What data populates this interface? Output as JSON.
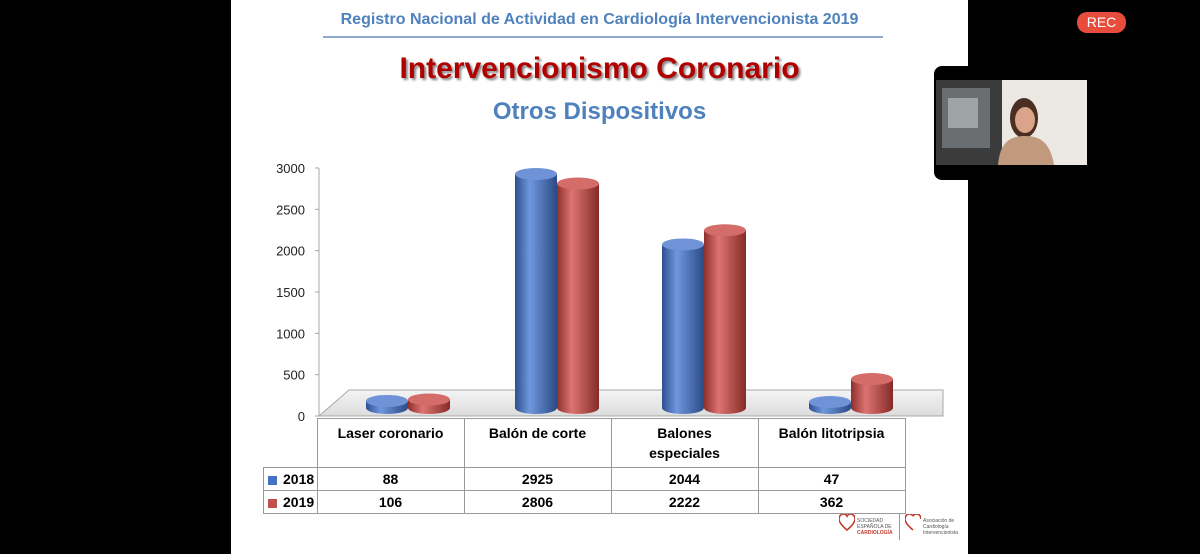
{
  "header": {
    "title": "Registro Nacional de Actividad en Cardiología Intervencionista 2019",
    "main_title": "Intervencionismo Coronario",
    "subtitle": "Otros Dispositivos"
  },
  "recording": {
    "label": "REC",
    "color": "#e74c3c"
  },
  "chart_data": {
    "type": "bar",
    "style": "3d-cylinder",
    "categories": [
      "Laser coronario",
      "Balón de corte",
      "Balones\nespeciales",
      "Balón litotripsia"
    ],
    "series": [
      {
        "name": "2018",
        "color": "#4472c4",
        "values": [
          88,
          2925,
          2044,
          47
        ]
      },
      {
        "name": "2019",
        "color": "#c0504d",
        "values": [
          106,
          2806,
          2222,
          362
        ]
      }
    ],
    "yticks": [
      0,
      500,
      1000,
      1500,
      2000,
      2500,
      3000
    ],
    "ylim": [
      0,
      3000
    ],
    "grid": false,
    "legend": "data-table-left"
  },
  "logos": {
    "sec": [
      "SOCIEDAD",
      "ESPAÑOLA DE",
      "CARDIOLOGÍA"
    ],
    "acic": [
      "Asociación de",
      "Cardiología",
      "Intervencionista"
    ]
  },
  "colors": {
    "accent_blue": "#4f81bd",
    "title_red": "#b00000"
  }
}
